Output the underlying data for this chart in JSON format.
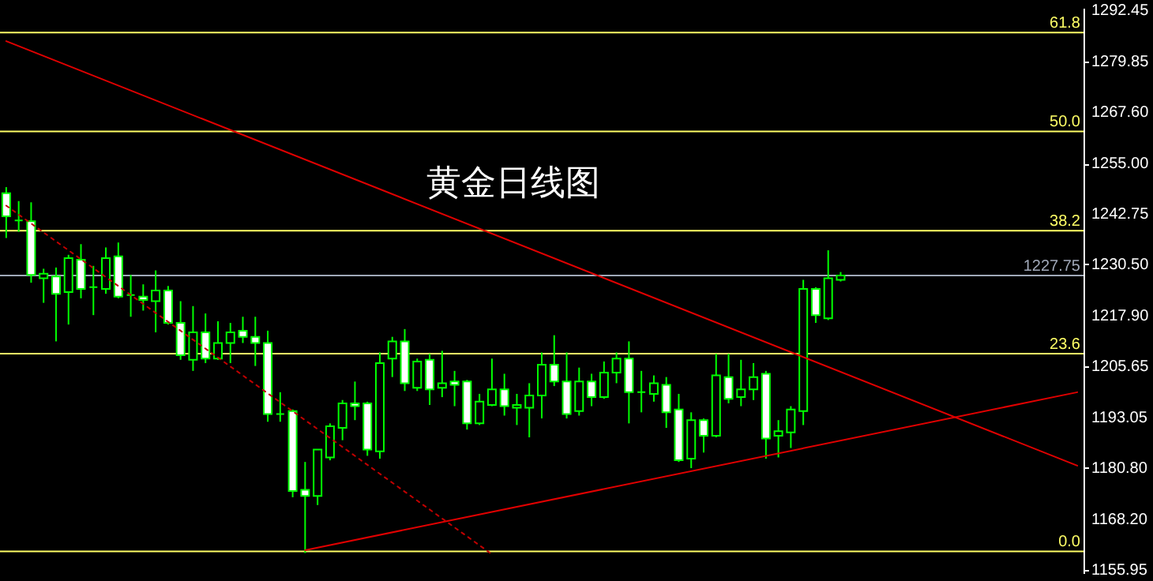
{
  "chart_data": {
    "type": "candlestick",
    "title": "黄金日线图",
    "categories": [
      null,
      null,
      null,
      null,
      null,
      null,
      null,
      null,
      null,
      null,
      null,
      null,
      null,
      null,
      null,
      null,
      null,
      null,
      null,
      null,
      null,
      null,
      null,
      null,
      null,
      null,
      null,
      null,
      null,
      null,
      null,
      null,
      null,
      null,
      null,
      null,
      null,
      null,
      null,
      null,
      null,
      null,
      null,
      null,
      null,
      null,
      null,
      null,
      null,
      null,
      null,
      null,
      null,
      null,
      null,
      null,
      null,
      null,
      null,
      null,
      null,
      null,
      null,
      null,
      null,
      null,
      null,
      null,
      null,
      null,
      null,
      null,
      null,
      null,
      null,
      null,
      null,
      null,
      null,
      null,
      null,
      null,
      null,
      null,
      null,
      null,
      null
    ],
    "ylim": [
      1155.2,
      1293.0
    ],
    "yticks": [
      {
        "value": 1292.45,
        "label": "1292.45"
      },
      {
        "value": 1279.85,
        "label": "1279.85"
      },
      {
        "value": 1267.6,
        "label": "1267.60"
      },
      {
        "value": 1255.0,
        "label": "1255.00"
      },
      {
        "value": 1242.75,
        "label": "1242.75"
      },
      {
        "value": 1230.5,
        "label": "1230.50"
      },
      {
        "value": 1217.9,
        "label": "1217.90"
      },
      {
        "value": 1205.65,
        "label": "1205.65"
      },
      {
        "value": 1193.05,
        "label": "1193.05"
      },
      {
        "value": 1180.8,
        "label": "1180.80"
      },
      {
        "value": 1168.2,
        "label": "1168.20"
      },
      {
        "value": 1155.95,
        "label": "1155.95"
      }
    ],
    "tick_labels": "y",
    "series": [
      {
        "type": "candlestick",
        "color": "#00ff00",
        "ohlc": [
          [
            1247.8,
            1249.3,
            1236.9,
            1242.2
          ],
          [
            1241.2,
            1245.9,
            1238.4,
            1241.2
          ],
          [
            1241.0,
            1245.6,
            1226.0,
            1227.9
          ],
          [
            1227.1,
            1229.4,
            1221.1,
            1228.2
          ],
          [
            1227.5,
            1229.7,
            1211.7,
            1223.3
          ],
          [
            1223.7,
            1232.8,
            1215.8,
            1232.0
          ],
          [
            1231.6,
            1235.4,
            1222.2,
            1224.5
          ],
          [
            1224.9,
            1230.1,
            1218.1,
            1224.9
          ],
          [
            1224.5,
            1234.6,
            1223.3,
            1232.0
          ],
          [
            1232.4,
            1235.8,
            1222.2,
            1222.6
          ],
          [
            1223.0,
            1227.9,
            1217.7,
            1223.0
          ],
          [
            1222.6,
            1225.6,
            1219.2,
            1221.8
          ],
          [
            1221.5,
            1229.0,
            1213.9,
            1224.1
          ],
          [
            1224.1,
            1225.2,
            1215.8,
            1216.2
          ],
          [
            1216.2,
            1221.5,
            1207.2,
            1208.3
          ],
          [
            1207.2,
            1220.3,
            1204.5,
            1213.9
          ],
          [
            1213.9,
            1218.5,
            1206.4,
            1207.5
          ],
          [
            1207.5,
            1216.6,
            1207.2,
            1211.3
          ],
          [
            1211.3,
            1216.2,
            1206.4,
            1213.9
          ],
          [
            1214.3,
            1217.7,
            1211.3,
            1212.8
          ],
          [
            1212.8,
            1217.7,
            1205.7,
            1211.3
          ],
          [
            1211.3,
            1214.3,
            1192.1,
            1194.0
          ],
          [
            1194.0,
            1199.3,
            1192.1,
            1194.0
          ],
          [
            1194.7,
            1195.1,
            1173.7,
            1175.2
          ],
          [
            1175.5,
            1182.3,
            1160.1,
            1174.0
          ],
          [
            1174.0,
            1185.3,
            1171.8,
            1185.3
          ],
          [
            1183.4,
            1191.7,
            1182.7,
            1191.0
          ],
          [
            1190.6,
            1197.4,
            1187.6,
            1196.6
          ],
          [
            1196.6,
            1201.9,
            1192.5,
            1195.9
          ],
          [
            1196.6,
            1197.0,
            1183.8,
            1185.3
          ],
          [
            1184.9,
            1209.0,
            1183.1,
            1206.4
          ],
          [
            1207.5,
            1212.8,
            1203.0,
            1211.7
          ],
          [
            1211.7,
            1214.7,
            1199.6,
            1201.5
          ],
          [
            1200.4,
            1207.5,
            1199.6,
            1206.8
          ],
          [
            1207.2,
            1208.7,
            1196.2,
            1200.0
          ],
          [
            1200.4,
            1209.4,
            1198.1,
            1201.5
          ],
          [
            1201.9,
            1204.5,
            1195.9,
            1201.1
          ],
          [
            1201.9,
            1202.3,
            1190.2,
            1191.7
          ],
          [
            1191.7,
            1198.9,
            1191.3,
            1197.0
          ],
          [
            1196.2,
            1207.5,
            1195.9,
            1200.0
          ],
          [
            1200.0,
            1203.8,
            1193.6,
            1195.9
          ],
          [
            1195.5,
            1198.9,
            1191.3,
            1196.2
          ],
          [
            1195.5,
            1201.5,
            1188.3,
            1198.5
          ],
          [
            1198.5,
            1209.0,
            1192.9,
            1206.0
          ],
          [
            1206.0,
            1213.2,
            1200.8,
            1201.9
          ],
          [
            1201.9,
            1209.0,
            1192.9,
            1194.0
          ],
          [
            1194.7,
            1205.3,
            1193.6,
            1201.9
          ],
          [
            1201.9,
            1203.8,
            1195.9,
            1198.1
          ],
          [
            1198.1,
            1206.8,
            1197.7,
            1204.1
          ],
          [
            1204.1,
            1209.0,
            1201.5,
            1207.5
          ],
          [
            1207.5,
            1211.7,
            1191.7,
            1199.3
          ],
          [
            1199.3,
            1204.5,
            1194.4,
            1199.3
          ],
          [
            1198.9,
            1203.4,
            1197.0,
            1201.5
          ],
          [
            1201.1,
            1203.0,
            1190.6,
            1194.4
          ],
          [
            1195.1,
            1198.9,
            1182.3,
            1182.7
          ],
          [
            1183.1,
            1194.4,
            1180.8,
            1192.5
          ],
          [
            1192.5,
            1192.9,
            1184.6,
            1188.7
          ],
          [
            1188.7,
            1208.7,
            1188.3,
            1203.4
          ],
          [
            1203.0,
            1208.7,
            1196.6,
            1197.7
          ],
          [
            1198.1,
            1207.2,
            1195.9,
            1200.0
          ],
          [
            1200.0,
            1206.4,
            1197.4,
            1203.0
          ],
          [
            1203.8,
            1204.5,
            1183.1,
            1188.0
          ],
          [
            1188.7,
            1192.5,
            1183.4,
            1189.8
          ],
          [
            1189.5,
            1195.9,
            1185.7,
            1195.1
          ],
          [
            1194.7,
            1226.7,
            1191.3,
            1224.5
          ],
          [
            1224.5,
            1224.9,
            1216.2,
            1218.1
          ],
          [
            1217.3,
            1233.9,
            1216.9,
            1227.1
          ],
          [
            1226.7,
            1228.6,
            1226.3,
            1227.75
          ],
          null,
          null,
          null,
          null,
          null,
          null,
          null,
          null,
          null,
          null,
          null,
          null,
          null,
          null,
          null,
          null,
          null,
          null,
          null
        ]
      },
      {
        "type": "line",
        "color": "#e00000",
        "values": [
          1284.9,
          null,
          null,
          null,
          null,
          null,
          null,
          null,
          null,
          null,
          null,
          null,
          null,
          null,
          null,
          null,
          null,
          null,
          null,
          null,
          null,
          null,
          null,
          null,
          null,
          null,
          null,
          null,
          null,
          null,
          null,
          null,
          null,
          null,
          null,
          null,
          null,
          null,
          null,
          null,
          null,
          null,
          null,
          null,
          null,
          null,
          null,
          null,
          null,
          null,
          null,
          null,
          null,
          null,
          null,
          null,
          null,
          null,
          null,
          null,
          null,
          null,
          null,
          null,
          null,
          null,
          null,
          null,
          null,
          null,
          null,
          null,
          null,
          null,
          null,
          null,
          null,
          null,
          null,
          null,
          null,
          null,
          null,
          null,
          null,
          null,
          1181.4
        ]
      },
      {
        "type": "line",
        "color": "#e00000",
        "values": [
          null,
          null,
          null,
          null,
          null,
          null,
          null,
          null,
          null,
          null,
          null,
          null,
          null,
          null,
          null,
          null,
          null,
          null,
          null,
          null,
          null,
          null,
          null,
          null,
          1160.8,
          null,
          null,
          null,
          null,
          null,
          null,
          null,
          null,
          null,
          null,
          null,
          null,
          null,
          null,
          null,
          null,
          null,
          null,
          null,
          null,
          null,
          null,
          null,
          null,
          null,
          null,
          null,
          null,
          null,
          null,
          null,
          null,
          null,
          null,
          null,
          null,
          null,
          null,
          null,
          null,
          null,
          null,
          null,
          null,
          null,
          null,
          null,
          null,
          null,
          null,
          null,
          null,
          null,
          null,
          null,
          null,
          null,
          null,
          null,
          null,
          null,
          1199.3
        ]
      },
      {
        "type": "line",
        "color": "#c00000",
        "line_style": "dotted",
        "values": [
          1244.8,
          null,
          null,
          null,
          null,
          null,
          null,
          null,
          null,
          null,
          null,
          null,
          null,
          null,
          null,
          null,
          null,
          null,
          null,
          null,
          null,
          null,
          null,
          null,
          null,
          null,
          null,
          null,
          null,
          null,
          null,
          null,
          null,
          null,
          null,
          null,
          null,
          null,
          null,
          1159.8,
          null,
          null,
          null,
          null,
          null,
          null,
          null,
          null,
          null,
          null,
          null,
          null,
          null,
          null,
          null,
          null,
          null,
          null,
          null,
          null,
          null,
          null,
          null,
          null,
          null,
          null,
          null,
          null,
          null,
          null,
          null,
          null,
          null,
          null,
          null,
          null,
          null,
          null,
          null,
          null,
          null,
          null,
          null,
          null,
          null,
          null,
          null
        ]
      }
    ],
    "ref_lines": [
      {
        "axis": "y",
        "value": 1287.0,
        "color": "#ffff66"
      },
      {
        "axis": "y",
        "value": 1262.9,
        "color": "#ffff66"
      },
      {
        "axis": "y",
        "value": 1238.7,
        "color": "#ffff66"
      },
      {
        "axis": "y",
        "value": 1208.7,
        "color": "#ffff66"
      },
      {
        "axis": "y",
        "value": 1160.5,
        "color": "#ffff66"
      },
      {
        "axis": "y",
        "value": 1227.75,
        "label": "1227.75",
        "color": "#a0a8b8"
      }
    ],
    "annotations": [
      {
        "text": "61.8",
        "y": 1287.0
      },
      {
        "text": "50.0",
        "y": 1262.9
      },
      {
        "text": "38.2",
        "y": 1238.7
      },
      {
        "text": "23.6",
        "y": 1208.7
      },
      {
        "text": "0.0",
        "y": 1160.5
      }
    ]
  }
}
